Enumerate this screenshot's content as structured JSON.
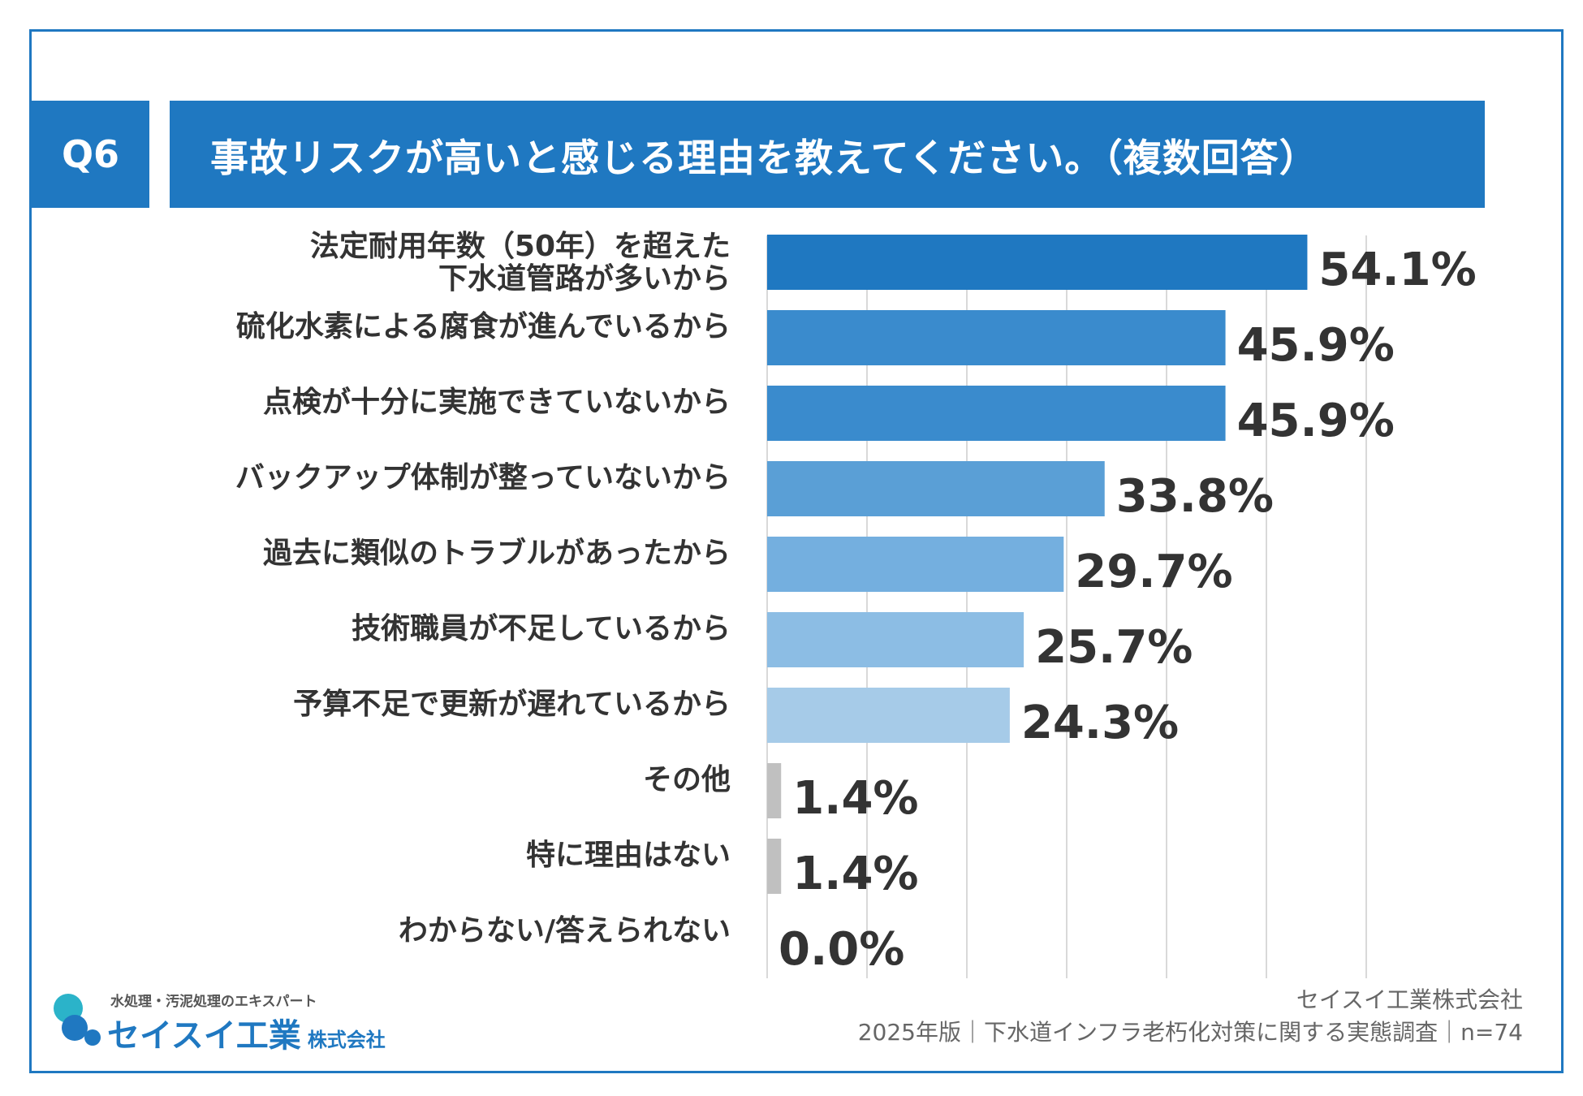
{
  "header": {
    "badge": "Q6",
    "title": "事故リスクが高いと感じる理由を教えてください。（複数回答）"
  },
  "chart_data": {
    "type": "bar",
    "orientation": "horizontal",
    "title": "事故リスクが高いと感じる理由を教えてください。（複数回答）",
    "categories": [
      [
        "法定耐用年数（50年）を超えた",
        "下水道管路が多いから"
      ],
      [
        "硫化水素による腐食が進んでいるから"
      ],
      [
        "点検が十分に実施できていないから"
      ],
      [
        "バックアップ体制が整っていないから"
      ],
      [
        "過去に類似のトラブルがあったから"
      ],
      [
        "技術職員が不足しているから"
      ],
      [
        "予算不足で更新が遅れているから"
      ],
      [
        "その他"
      ],
      [
        "特に理由はない"
      ],
      [
        "わからない/答えられない"
      ]
    ],
    "values": [
      54.1,
      45.9,
      45.9,
      33.8,
      29.7,
      25.7,
      24.3,
      1.4,
      1.4,
      0.0
    ],
    "value_labels": [
      "54.1%",
      "45.9%",
      "45.9%",
      "33.8%",
      "29.7%",
      "25.7%",
      "24.3%",
      "1.4%",
      "1.4%",
      "0.0%"
    ],
    "bar_colors": [
      "#1f78c1",
      "#3a8bcd",
      "#3a8bcd",
      "#5a9fd6",
      "#74afdf",
      "#8cbde4",
      "#a6cbe8",
      "#c0c0c0",
      "#c0c0c0",
      "#c0c0c0"
    ],
    "xlim": [
      0,
      60
    ],
    "grid": true,
    "grid_step": 10
  },
  "logo": {
    "tagline": "水処理・汚泥処理のエキスパート",
    "name": "セイスイ工業",
    "suffix": "株式会社"
  },
  "footer": {
    "company": "セイスイ工業株式会社",
    "survey": "2025年版｜下水道インフラ老朽化対策に関する実態調査｜n=74"
  },
  "colors": {
    "accent": "#1f78c1",
    "grid": "#d9d9d9",
    "text": "#333333"
  }
}
